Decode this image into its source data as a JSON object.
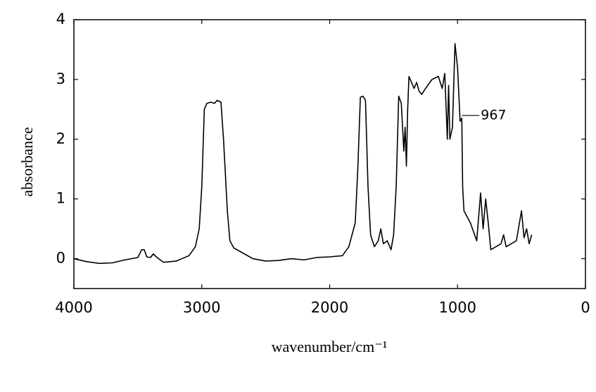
{
  "chart_data": {
    "type": "line",
    "x_label": "wavenumber/cm⁻¹",
    "y_label": "absorbance",
    "xlim": [
      4000,
      0
    ],
    "ylim": [
      -0.5,
      4
    ],
    "xticks": [
      4000,
      3000,
      2000,
      1000,
      0
    ],
    "yticks": [
      0,
      1,
      2,
      3,
      4
    ],
    "color": "#000000",
    "annotation": 967,
    "x": [
      4000,
      3900,
      3800,
      3700,
      3600,
      3500,
      3470,
      3450,
      3430,
      3400,
      3380,
      3350,
      3300,
      3200,
      3100,
      3050,
      3020,
      3000,
      2980,
      2960,
      2930,
      2900,
      2880,
      2850,
      2830,
      2800,
      2780,
      2750,
      2700,
      2600,
      2500,
      2400,
      2300,
      2200,
      2100,
      2000,
      1900,
      1850,
      1800,
      1780,
      1760,
      1740,
      1720,
      1700,
      1680,
      1650,
      1620,
      1600,
      1580,
      1550,
      1520,
      1500,
      1480,
      1460,
      1440,
      1420,
      1410,
      1400,
      1390,
      1380,
      1360,
      1340,
      1320,
      1300,
      1280,
      1250,
      1200,
      1150,
      1120,
      1100,
      1080,
      1070,
      1060,
      1040,
      1020,
      1000,
      980,
      967,
      960,
      950,
      900,
      850,
      820,
      800,
      780,
      760,
      740,
      700,
      660,
      640,
      620,
      580,
      540,
      500,
      480,
      460,
      440,
      420
    ],
    "values": [
      0.0,
      -0.05,
      -0.08,
      -0.07,
      -0.02,
      0.02,
      0.15,
      0.15,
      0.03,
      0.02,
      0.08,
      0.02,
      -0.06,
      -0.04,
      0.05,
      0.2,
      0.5,
      1.2,
      2.5,
      2.6,
      2.62,
      2.6,
      2.65,
      2.62,
      2.0,
      0.8,
      0.3,
      0.18,
      0.12,
      0.0,
      -0.04,
      -0.03,
      0.0,
      -0.02,
      0.02,
      0.03,
      0.05,
      0.2,
      0.6,
      1.5,
      2.7,
      2.72,
      2.65,
      1.2,
      0.4,
      0.2,
      0.3,
      0.5,
      0.25,
      0.3,
      0.15,
      0.4,
      1.2,
      2.72,
      2.6,
      1.8,
      2.2,
      1.55,
      2.5,
      3.05,
      2.95,
      2.85,
      2.95,
      2.8,
      2.75,
      2.85,
      3.0,
      3.05,
      2.85,
      3.1,
      2.0,
      2.9,
      2.0,
      2.2,
      3.6,
      3.2,
      2.3,
      2.35,
      1.2,
      0.8,
      0.6,
      0.3,
      1.1,
      0.5,
      1.0,
      0.6,
      0.15,
      0.2,
      0.25,
      0.4,
      0.2,
      0.25,
      0.3,
      0.8,
      0.35,
      0.5,
      0.25,
      0.4
    ]
  }
}
